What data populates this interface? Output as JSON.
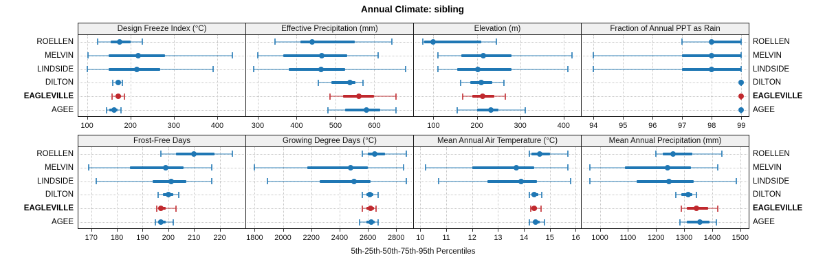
{
  "title": "Annual Climate: sibling",
  "xlabel": "5th-25th-50th-75th-95th Percentiles",
  "colors": {
    "series_normal": "#1f77b4",
    "series_highlight": "#c0282d",
    "grid": "#c4c4c4",
    "strip_background": "#f0f0f0",
    "panel_border": "#1a1a1a"
  },
  "chart_data": {
    "type": "interval-dot",
    "note": "Each row shows 5th-25th-50th-75th-95th percentiles: thin light line = 5th-95th with end caps, thick line = 25th-75th, dot = 50th (median)",
    "percentile_levels": [
      5,
      25,
      50,
      75,
      95
    ],
    "categories": [
      "ROELLEN",
      "MELVIN",
      "LINDSIDE",
      "DILTON",
      "EAGLEVILLE",
      "AGEE"
    ],
    "highlight_category": "EAGLEVILLE",
    "legend_position": "none",
    "grid": "dotted",
    "panels": [
      {
        "title": "Design Freeze Index (°C)",
        "ticks": [
          100,
          200,
          300,
          400
        ],
        "range": [
          80,
          465
        ],
        "values": [
          [
            125,
            155,
            175,
            200,
            228
          ],
          [
            102,
            150,
            218,
            280,
            435
          ],
          [
            100,
            150,
            215,
            268,
            390
          ],
          [
            160,
            166,
            172,
            177,
            182
          ],
          [
            158,
            165,
            172,
            178,
            186
          ],
          [
            145,
            152,
            162,
            170,
            178
          ]
        ]
      },
      {
        "title": "Effective Precipitation (mm)",
        "ticks": [
          300,
          400,
          500,
          600
        ],
        "range": [
          270,
          700
        ],
        "values": [
          [
            345,
            410,
            440,
            550,
            645
          ],
          [
            300,
            365,
            465,
            530,
            610
          ],
          [
            290,
            380,
            462,
            525,
            680
          ],
          [
            455,
            490,
            538,
            552,
            570
          ],
          [
            485,
            520,
            560,
            600,
            655
          ],
          [
            480,
            525,
            580,
            615,
            655
          ]
        ]
      },
      {
        "title": "Elevation (m)",
        "ticks": [
          100,
          200,
          300,
          400
        ],
        "range": [
          55,
          440
        ],
        "values": [
          [
            75,
            78,
            100,
            210,
            245
          ],
          [
            110,
            165,
            215,
            280,
            420
          ],
          [
            110,
            155,
            202,
            280,
            410
          ],
          [
            162,
            185,
            210,
            235,
            262
          ],
          [
            168,
            190,
            213,
            240,
            265
          ],
          [
            155,
            200,
            233,
            250,
            312
          ]
        ]
      },
      {
        "title": "Fraction of Annual PPT as Rain",
        "ticks": [
          94,
          95,
          96,
          97,
          98,
          99
        ],
        "range": [
          93.6,
          99.25
        ],
        "values": [
          [
            97,
            98,
            98,
            99,
            99
          ],
          [
            94,
            97,
            98,
            99,
            99
          ],
          [
            94,
            97,
            98,
            99,
            99
          ],
          [
            99,
            99,
            99,
            99,
            99
          ],
          [
            99,
            99,
            99,
            99,
            99
          ],
          [
            99,
            99,
            99,
            99,
            99
          ]
        ]
      },
      {
        "title": "Frost-Free Days",
        "ticks": [
          170,
          180,
          190,
          200,
          210,
          220
        ],
        "range": [
          165,
          230
        ],
        "values": [
          [
            197,
            203,
            210,
            218,
            225
          ],
          [
            169,
            185,
            199,
            206,
            217
          ],
          [
            172,
            194,
            201,
            207,
            217
          ],
          [
            196,
            198,
            200,
            202,
            204
          ],
          [
            195.5,
            196.5,
            197,
            199,
            203
          ],
          [
            195,
            196,
            197,
            199,
            202
          ]
        ]
      },
      {
        "title": "Growing Degree Days (°C)",
        "ticks": [
          1800,
          2000,
          2200,
          2400,
          2600,
          2800
        ],
        "range": [
          1740,
          2920
        ],
        "values": [
          [
            2560,
            2600,
            2650,
            2720,
            2870
          ],
          [
            1800,
            2170,
            2480,
            2600,
            2850
          ],
          [
            1890,
            2260,
            2500,
            2620,
            2870
          ],
          [
            2560,
            2590,
            2615,
            2640,
            2670
          ],
          [
            2560,
            2590,
            2620,
            2645,
            2660
          ],
          [
            2540,
            2590,
            2625,
            2650,
            2670
          ]
        ]
      },
      {
        "title": "Mean Annual Air Temperature (°C)",
        "ticks": [
          10,
          11,
          12,
          13,
          14,
          15,
          16
        ],
        "range": [
          9.75,
          16.2
        ],
        "values": [
          [
            14.2,
            14.3,
            14.6,
            15.0,
            15.7
          ],
          [
            10.2,
            12.0,
            13.7,
            14.4,
            15.7
          ],
          [
            10.7,
            12.6,
            13.9,
            14.5,
            15.8
          ],
          [
            14.2,
            14.3,
            14.4,
            14.55,
            14.7
          ],
          [
            14.25,
            14.3,
            14.4,
            14.5,
            14.65
          ],
          [
            14.2,
            14.35,
            14.45,
            14.6,
            14.8
          ]
        ]
      },
      {
        "title": "Mean Annual Precipitation (mm)",
        "ticks": [
          1000,
          1100,
          1200,
          1300,
          1400,
          1500
        ],
        "range": [
          935,
          1530
        ],
        "values": [
          [
            1200,
            1225,
            1260,
            1330,
            1435
          ],
          [
            965,
            1090,
            1240,
            1325,
            1420
          ],
          [
            965,
            1130,
            1245,
            1335,
            1485
          ],
          [
            1270,
            1290,
            1315,
            1330,
            1345
          ],
          [
            1290,
            1310,
            1345,
            1385,
            1420
          ],
          [
            1285,
            1310,
            1355,
            1390,
            1415
          ]
        ]
      }
    ]
  }
}
